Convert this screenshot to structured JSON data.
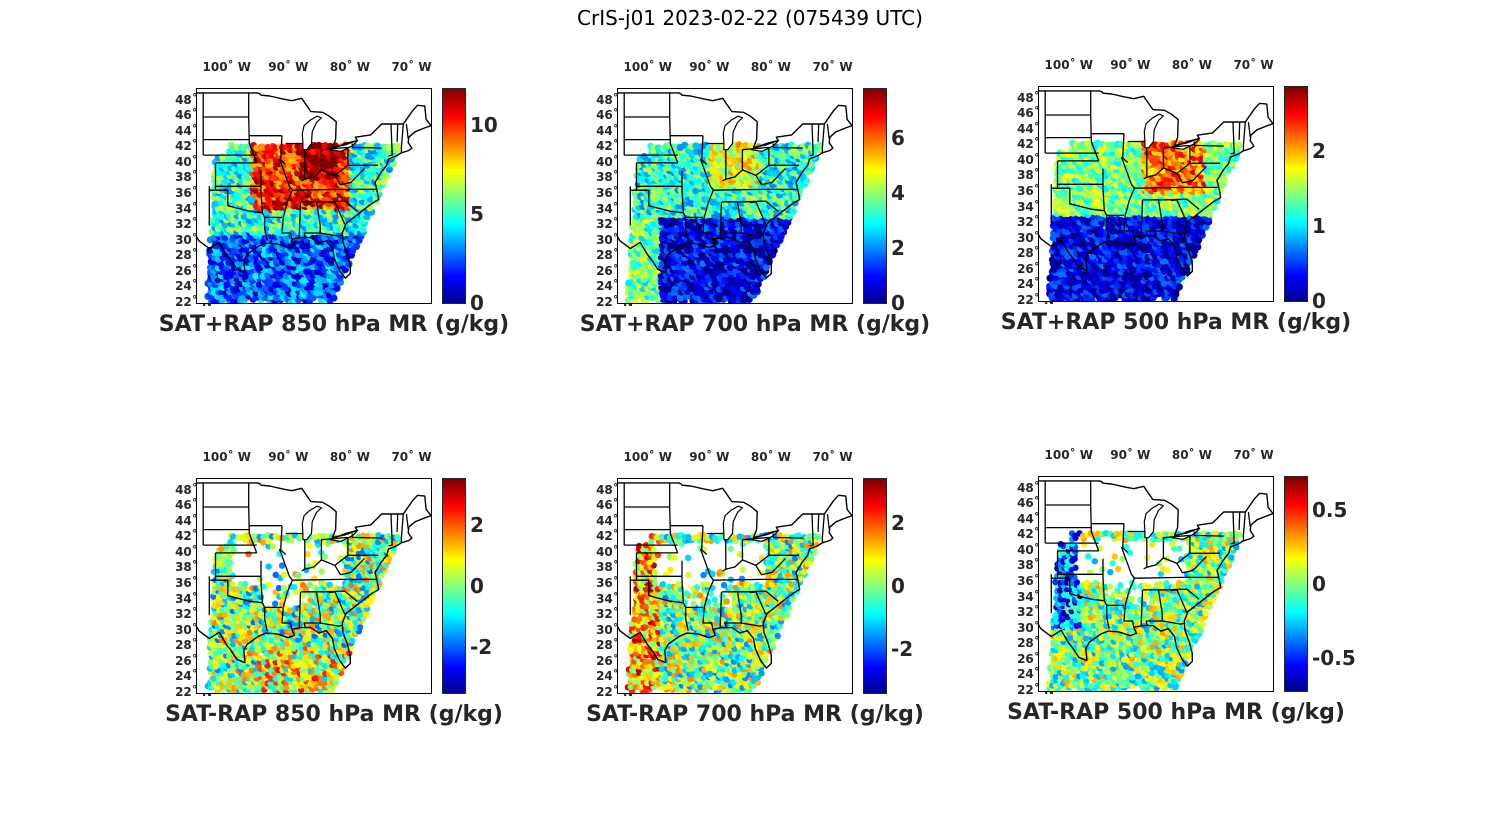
{
  "figure": {
    "title": "CrIS-j01 2023-02-22 (075439 UTC)"
  },
  "map_axes": {
    "lon_labels": [
      "100˚ W",
      "90˚ W",
      "80˚ W",
      "70˚ W"
    ],
    "lon_values": [
      100,
      90,
      80,
      70
    ],
    "lat_labels": [
      "48˚ N",
      "46˚ N",
      "44˚ N",
      "42˚ N",
      "40˚ N",
      "38˚ N",
      "36˚ N",
      "34˚ N",
      "32˚ N",
      "30˚ N",
      "28˚ N",
      "26˚ N",
      "24˚ N",
      "22˚ N"
    ],
    "lat_values": [
      48,
      46,
      44,
      42,
      40,
      38,
      36,
      34,
      32,
      30,
      28,
      26,
      24,
      22
    ]
  },
  "colormap": "jet",
  "panels": [
    {
      "caption": "SAT+RAP 850 hPa MR (g/kg)",
      "cbar_ticks": [
        "10",
        "5",
        "0"
      ],
      "cbar_values": [
        10,
        5,
        0
      ],
      "cbar_range": [
        0,
        12
      ]
    },
    {
      "caption": "SAT+RAP 700 hPa MR (g/kg)",
      "cbar_ticks": [
        "6",
        "4",
        "2",
        "0"
      ],
      "cbar_values": [
        6,
        4,
        2,
        0
      ],
      "cbar_range": [
        0,
        7.8
      ]
    },
    {
      "caption": "SAT+RAP 500 hPa MR (g/kg)",
      "cbar_ticks": [
        "2",
        "1",
        "0"
      ],
      "cbar_values": [
        2,
        1,
        0
      ],
      "cbar_range": [
        0,
        2.85
      ]
    },
    {
      "caption": "SAT-RAP 850 hPa MR (g/kg)",
      "cbar_ticks": [
        "2",
        "0",
        "-2"
      ],
      "cbar_values": [
        2,
        0,
        -2
      ],
      "cbar_range": [
        -3.5,
        3.5
      ]
    },
    {
      "caption": "SAT-RAP 700 hPa MR (g/kg)",
      "cbar_ticks": [
        "2",
        "0",
        "-2"
      ],
      "cbar_values": [
        2,
        0,
        -2
      ],
      "cbar_range": [
        -3.4,
        3.4
      ]
    },
    {
      "caption": "SAT-RAP 500 hPa MR (g/kg)",
      "cbar_ticks": [
        "0.5",
        "0",
        "-0.5"
      ],
      "cbar_values": [
        0.5,
        0,
        -0.5
      ],
      "cbar_range": [
        -0.72,
        0.72
      ]
    }
  ]
}
